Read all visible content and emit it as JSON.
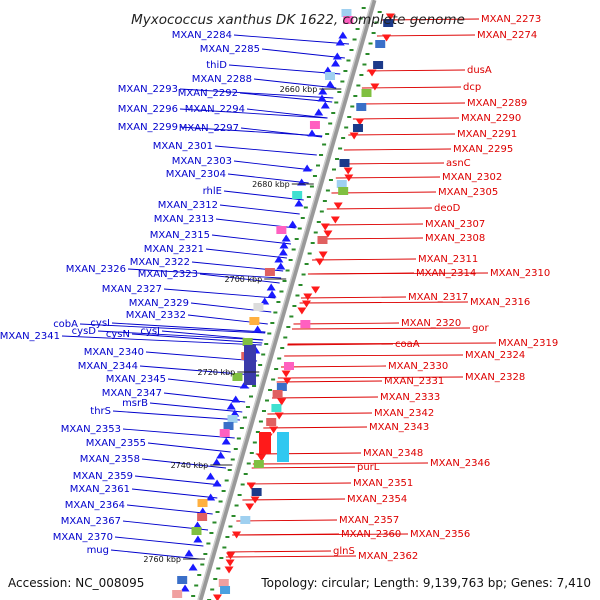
{
  "title": "Myxococcus xanthus DK 1622, complete genome",
  "accession": "Accession: NC_008095",
  "topology": "Topology: circular; Length: 9,139,763 bp; Genes: 7,410",
  "colors": {
    "left_label": "#0000cc",
    "right_label": "#dd0000",
    "left_arrow": "#1a1aff",
    "right_arrow": "#ff1a1a",
    "backbone": "#888888",
    "tick": "#2a8a2a"
  },
  "kbp_marks": [
    {
      "label": "2660 kbp"
    },
    {
      "label": "2680 kbp"
    },
    {
      "label": "2700 kbp"
    },
    {
      "label": "2720 kbp"
    },
    {
      "label": "2740 kbp"
    },
    {
      "label": "2760 kbp"
    }
  ],
  "left_labels": [
    "MXAN_2284",
    "MXAN_2285",
    "thiD",
    "MXAN_2288",
    "MXAN_2293",
    "MXAN_2292",
    "MXAN_2296",
    "MXAN_2294",
    "MXAN_2299",
    "MXAN_2297",
    "MXAN_2301",
    "MXAN_2303",
    "MXAN_2304",
    "rhlE",
    "MXAN_2312",
    "MXAN_2313",
    "MXAN_2315",
    "MXAN_2321",
    "MXAN_2322",
    "MXAN_2326",
    "MXAN_2323",
    "MXAN_2327",
    "MXAN_2329",
    "MXAN_2332",
    "cysI",
    "cobA",
    "cysJ",
    "cysD",
    "cysN",
    "MXAN_2341",
    "MXAN_2340",
    "MXAN_2344",
    "MXAN_2345",
    "MXAN_2347",
    "msrB",
    "thrS",
    "MXAN_2353",
    "MXAN_2355",
    "MXAN_2358",
    "MXAN_2359",
    "MXAN_2361",
    "MXAN_2364",
    "MXAN_2367",
    "MXAN_2370",
    "mug"
  ],
  "right_labels": [
    "MXAN_2273",
    "MXAN_2274",
    "dusA",
    "dcp",
    "MXAN_2289",
    "MXAN_2290",
    "MXAN_2291",
    "MXAN_2295",
    "asnC",
    "MXAN_2302",
    "MXAN_2305",
    "deoD",
    "MXAN_2307",
    "MXAN_2308",
    "MXAN_2311",
    "MXAN_2314",
    "MXAN_2310",
    "MXAN_2317",
    "MXAN_2316",
    "MXAN_2320",
    "gor",
    "coaA",
    "MXAN_2319",
    "MXAN_2324",
    "MXAN_2330",
    "MXAN_2328",
    "MXAN_2331",
    "MXAN_2333",
    "MXAN_2342",
    "MXAN_2343",
    "MXAN_2348",
    "MXAN_2346",
    "purL",
    "MXAN_2351",
    "MXAN_2354",
    "MXAN_2357",
    "MXAN_2360",
    "MXAN_2356",
    "glnS",
    "MXAN_2362"
  ]
}
